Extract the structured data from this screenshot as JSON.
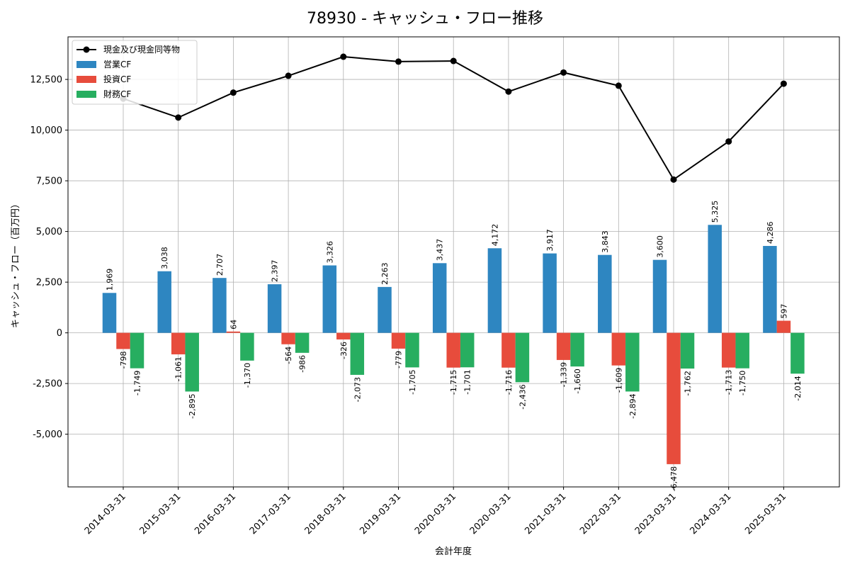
{
  "chart_data": {
    "type": "bar",
    "title": "78930 - キャッシュ・フロー推移",
    "xlabel": "会計年度",
    "ylabel": "キャッシュ・フロー（百万円）",
    "categories": [
      "2014-03-31",
      "2015-03-31",
      "2016-03-31",
      "2017-03-31",
      "2018-03-31",
      "2019-03-31",
      "2020-03-31",
      "2020-03-31",
      "2021-03-31",
      "2022-03-31",
      "2023-03-31",
      "2024-03-31",
      "2025-03-31"
    ],
    "ylim": [
      -7600,
      14600
    ],
    "yticks": [
      -5000,
      -2500,
      0,
      2500,
      5000,
      7500,
      10000,
      12500
    ],
    "ytick_labels": [
      "-5,000",
      "-2,500",
      "0",
      "2,500",
      "5,000",
      "7,500",
      "10,000",
      "12,500"
    ],
    "grid": true,
    "legend_position": "top-left",
    "series": [
      {
        "name": "営業CF",
        "kind": "bar",
        "color": "#2e86c1",
        "values": [
          1969,
          3038,
          2707,
          2397,
          3326,
          2263,
          3437,
          4172,
          3917,
          3843,
          3600,
          5325,
          4286
        ],
        "labels": [
          "1,969",
          "3,038",
          "2,707",
          "2,397",
          "3,326",
          "2,263",
          "3,437",
          "4,172",
          "3,917",
          "3,843",
          "3,600",
          "5,325",
          "4,286"
        ]
      },
      {
        "name": "投資CF",
        "kind": "bar",
        "color": "#e74c3c",
        "values": [
          -798,
          -1061,
          64,
          -564,
          -326,
          -779,
          -1715,
          -1716,
          -1339,
          -1609,
          -6478,
          -1713,
          597
        ],
        "labels": [
          "-798",
          "-1,061",
          "64",
          "-564",
          "-326",
          "-779",
          "-1,715",
          "-1,716",
          "-1,339",
          "-1,609",
          "-6,478",
          "-1,713",
          "597"
        ]
      },
      {
        "name": "財務CF",
        "kind": "bar",
        "color": "#27ae60",
        "values": [
          -1749,
          -2895,
          -1370,
          -986,
          -2073,
          -1705,
          -1701,
          -2436,
          -1660,
          -2894,
          -1762,
          -1750,
          -2014
        ],
        "labels": [
          "-1,749",
          "-2,895",
          "-1,370",
          "-986",
          "-2,073",
          "-1,705",
          "-1,701",
          "-2,436",
          "-1,660",
          "-2,894",
          "-1,762",
          "-1,750",
          "-2,014"
        ]
      },
      {
        "name": "現金及び現金同等物",
        "kind": "line",
        "color": "#000000",
        "values": [
          11550,
          10620,
          11850,
          12680,
          13620,
          13380,
          13410,
          11900,
          12840,
          12190,
          7560,
          9440,
          12290
        ]
      }
    ]
  }
}
